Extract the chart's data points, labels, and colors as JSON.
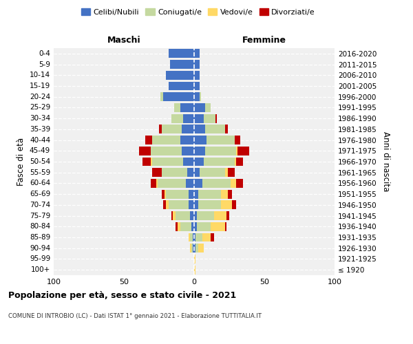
{
  "age_groups": [
    "100+",
    "95-99",
    "90-94",
    "85-89",
    "80-84",
    "75-79",
    "70-74",
    "65-69",
    "60-64",
    "55-59",
    "50-54",
    "45-49",
    "40-44",
    "35-39",
    "30-34",
    "25-29",
    "20-24",
    "15-19",
    "10-14",
    "5-9",
    "0-4"
  ],
  "birth_years": [
    "≤ 1920",
    "1921-1925",
    "1926-1930",
    "1931-1935",
    "1936-1940",
    "1941-1945",
    "1946-1950",
    "1951-1955",
    "1956-1960",
    "1961-1965",
    "1966-1970",
    "1971-1975",
    "1976-1980",
    "1981-1985",
    "1986-1990",
    "1991-1995",
    "1996-2000",
    "2001-2005",
    "2006-2010",
    "2011-2015",
    "2016-2020"
  ],
  "maschi_celibi": [
    0,
    0,
    1,
    1,
    2,
    3,
    4,
    4,
    6,
    5,
    8,
    9,
    10,
    9,
    8,
    10,
    22,
    18,
    20,
    17,
    18
  ],
  "maschi_coniugati": [
    0,
    0,
    1,
    2,
    8,
    10,
    14,
    16,
    20,
    18,
    22,
    22,
    20,
    14,
    8,
    4,
    2,
    0,
    0,
    0,
    0
  ],
  "maschi_vedovi": [
    0,
    0,
    1,
    1,
    2,
    2,
    2,
    1,
    1,
    0,
    1,
    0,
    0,
    0,
    0,
    0,
    0,
    0,
    0,
    0,
    0
  ],
  "maschi_divorziati": [
    0,
    0,
    0,
    0,
    1,
    1,
    2,
    2,
    4,
    7,
    6,
    8,
    5,
    2,
    0,
    0,
    0,
    0,
    0,
    0,
    0
  ],
  "femmine_celibi": [
    0,
    0,
    1,
    1,
    2,
    2,
    3,
    3,
    6,
    4,
    7,
    8,
    9,
    8,
    7,
    8,
    4,
    4,
    4,
    4,
    4
  ],
  "femmine_coniugati": [
    0,
    0,
    2,
    5,
    10,
    12,
    16,
    16,
    20,
    18,
    22,
    22,
    20,
    14,
    8,
    4,
    1,
    0,
    0,
    0,
    0
  ],
  "femmine_vedovi": [
    1,
    1,
    4,
    6,
    10,
    9,
    8,
    5,
    4,
    2,
    1,
    1,
    0,
    0,
    0,
    0,
    0,
    0,
    0,
    0,
    0
  ],
  "femmine_divorziati": [
    0,
    0,
    0,
    2,
    1,
    2,
    3,
    3,
    5,
    5,
    5,
    8,
    4,
    2,
    1,
    0,
    0,
    0,
    0,
    0,
    0
  ],
  "colors": {
    "celibi": "#4472c4",
    "coniugati": "#c5d9a0",
    "vedovi": "#ffd966",
    "divorziati": "#c00000"
  },
  "xlim": 100,
  "title": "Popolazione per età, sesso e stato civile - 2021",
  "subtitle": "COMUNE DI INTROBIO (LC) - Dati ISTAT 1° gennaio 2021 - Elaborazione TUTTITALIA.IT",
  "ylabel_left": "Fasce di età",
  "ylabel_right": "Anni di nascita",
  "xlabel_maschi": "Maschi",
  "xlabel_femmine": "Femmine",
  "legend_labels": [
    "Celibi/Nubili",
    "Coniugati/e",
    "Vedovi/e",
    "Divorziati/e"
  ],
  "bg_color": "#f0f0f0"
}
